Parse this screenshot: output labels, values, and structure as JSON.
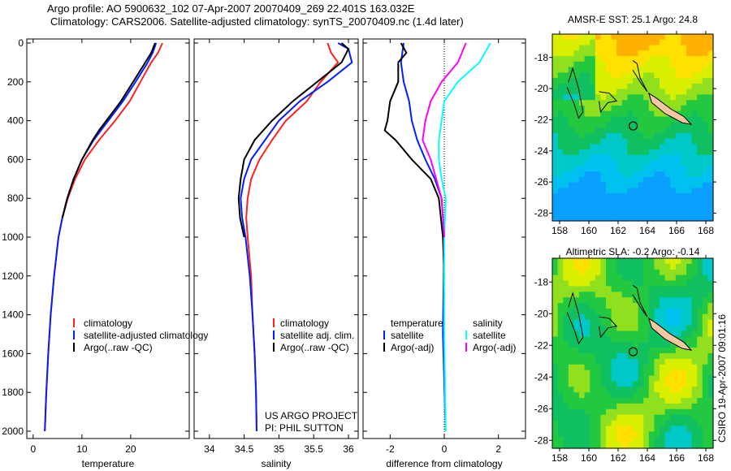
{
  "title_line1": "Argo profile: AO 5900632_102 07-Apr-2007 20070409_269 22.401S 163.032E",
  "title_line2": "Climatology: CARS2006. Satellite-adjusted climatology: synTS_20070409.nc (1.4d later)",
  "credit": "CSIRO 19-Apr-2007 09:01:16",
  "project_line1": "US ARGO PROJECT",
  "project_line2": "PI: PHIL SUTTON",
  "colors": {
    "clim": "#ff2020",
    "sat": "#0020ff",
    "argo": "#000000",
    "salsat": "#00ffff",
    "salargo": "#ff00ff"
  },
  "chart_data": [
    {
      "type": "line",
      "xlabel": "temperature",
      "ylabel": "",
      "xlim": [
        -1.3,
        32
      ],
      "ylim": [
        2000,
        0
      ],
      "xticks": [
        0,
        10,
        20
      ],
      "yticks": [
        0,
        200,
        400,
        600,
        800,
        1000,
        1200,
        1400,
        1600,
        1800,
        2000
      ],
      "legend": [
        "climatology",
        "satellite-adjusted climatology",
        "Argo(..raw -QC)"
      ],
      "series": [
        {
          "name": "climatology",
          "color": "#ff2020",
          "points": [
            [
              0,
              26.5
            ],
            [
              50,
              25.6
            ],
            [
              100,
              24.2
            ],
            [
              200,
              22
            ],
            [
              300,
              19.8
            ],
            [
              400,
              16.8
            ],
            [
              500,
              13.5
            ],
            [
              600,
              10.6
            ],
            [
              700,
              8.6
            ],
            [
              800,
              7.1
            ],
            [
              900,
              6
            ],
            [
              1000,
              5.2
            ],
            [
              1200,
              4.3
            ],
            [
              1400,
              3.6
            ],
            [
              1600,
              3.1
            ],
            [
              1800,
              2.7
            ],
            [
              2000,
              2.4
            ]
          ]
        },
        {
          "name": "satellite",
          "color": "#0020ff",
          "points": [
            [
              0,
              25.2
            ],
            [
              50,
              24.5
            ],
            [
              100,
              23.5
            ],
            [
              200,
              21
            ],
            [
              300,
              18.4
            ],
            [
              400,
              15.4
            ],
            [
              500,
              12.4
            ],
            [
              600,
              10
            ],
            [
              700,
              8.3
            ],
            [
              800,
              7
            ],
            [
              900,
              6
            ],
            [
              1000,
              5.2
            ],
            [
              1200,
              4.3
            ],
            [
              1400,
              3.6
            ],
            [
              1600,
              3.1
            ],
            [
              1800,
              2.7
            ],
            [
              2000,
              2.4
            ]
          ]
        },
        {
          "name": "Argo",
          "color": "#000000",
          "points": [
            [
              0,
              25
            ],
            [
              50,
              24.2
            ],
            [
              100,
              23
            ],
            [
              200,
              20.5
            ],
            [
              300,
              18
            ],
            [
              400,
              15
            ],
            [
              450,
              13.5
            ],
            [
              500,
              12.2
            ],
            [
              600,
              10
            ],
            [
              700,
              8.3
            ],
            [
              800,
              7
            ],
            [
              900,
              6
            ]
          ]
        }
      ]
    },
    {
      "type": "line",
      "xlabel": "salinity",
      "xlim": [
        33.78,
        36.14
      ],
      "ylim": [
        2000,
        0
      ],
      "xticks": [
        34,
        34.5,
        35,
        35.5,
        36
      ],
      "legend": [
        "climatology",
        "satellite adj. clim.",
        "Argo(..raw -QC)"
      ],
      "series": [
        {
          "name": "climatology",
          "color": "#ff2020",
          "points": [
            [
              0,
              35.7
            ],
            [
              50,
              35.75
            ],
            [
              100,
              35.85
            ],
            [
              200,
              35.6
            ],
            [
              300,
              35.4
            ],
            [
              400,
              35.1
            ],
            [
              500,
              34.9
            ],
            [
              600,
              34.72
            ],
            [
              700,
              34.6
            ],
            [
              800,
              34.55
            ],
            [
              900,
              34.53
            ],
            [
              1000,
              34.55
            ],
            [
              1200,
              34.6
            ],
            [
              1400,
              34.62
            ],
            [
              1600,
              34.65
            ],
            [
              1800,
              34.67
            ],
            [
              2000,
              34.68
            ]
          ]
        },
        {
          "name": "satellite",
          "color": "#0020ff",
          "points": [
            [
              0,
              35.85
            ],
            [
              30,
              36
            ],
            [
              100,
              36.05
            ],
            [
              200,
              35.7
            ],
            [
              300,
              35.3
            ],
            [
              400,
              35
            ],
            [
              500,
              34.8
            ],
            [
              600,
              34.6
            ],
            [
              700,
              34.5
            ],
            [
              800,
              34.45
            ],
            [
              900,
              34.47
            ],
            [
              1000,
              34.52
            ],
            [
              1200,
              34.58
            ],
            [
              1400,
              34.62
            ],
            [
              1600,
              34.65
            ],
            [
              1800,
              34.67
            ],
            [
              2000,
              34.68
            ]
          ]
        },
        {
          "name": "Argo",
          "color": "#000000",
          "points": [
            [
              0,
              35.9
            ],
            [
              30,
              36
            ],
            [
              100,
              35.9
            ],
            [
              200,
              35.55
            ],
            [
              300,
              35.2
            ],
            [
              400,
              34.9
            ],
            [
              500,
              34.65
            ],
            [
              600,
              34.5
            ],
            [
              700,
              34.45
            ],
            [
              800,
              34.42
            ],
            [
              900,
              34.44
            ],
            [
              1000,
              34.5
            ]
          ]
        }
      ]
    },
    {
      "type": "line",
      "xlabel": "difference from climatology",
      "xlim": [
        -3,
        3
      ],
      "ylim": [
        2000,
        0
      ],
      "xticks": [
        -2,
        0,
        2
      ],
      "legend_temp": {
        "header": "temperature",
        "items": [
          "satellite",
          "Argo(-adj)"
        ]
      },
      "legend_sal": {
        "header": "salinity",
        "items": [
          "satellite",
          "Argo(-adj)"
        ]
      },
      "series": [
        {
          "name": "temperature satellite",
          "color": "#0020ff",
          "points": [
            [
              0,
              -1.5
            ],
            [
              100,
              -1.6
            ],
            [
              200,
              -1.5
            ],
            [
              300,
              -1.3
            ],
            [
              400,
              -1.2
            ],
            [
              500,
              -1
            ],
            [
              600,
              -0.7
            ],
            [
              700,
              -0.35
            ],
            [
              800,
              -0.1
            ],
            [
              1000,
              0
            ],
            [
              1500,
              -0.05
            ],
            [
              2000,
              0.05
            ]
          ]
        },
        {
          "name": "temperature Argo",
          "color": "#000000",
          "points": [
            [
              0,
              -1.6
            ],
            [
              50,
              -1.4
            ],
            [
              100,
              -1.7
            ],
            [
              200,
              -1.7
            ],
            [
              300,
              -2
            ],
            [
              400,
              -2.1
            ],
            [
              450,
              -2.2
            ],
            [
              500,
              -1.8
            ],
            [
              550,
              -1.5
            ],
            [
              600,
              -1.2
            ],
            [
              700,
              -0.5
            ],
            [
              800,
              -0.2
            ],
            [
              1000,
              -0.05
            ],
            [
              1200,
              0
            ]
          ]
        },
        {
          "name": "salinity satellite",
          "color": "#00ffff",
          "points": [
            [
              0,
              1.7
            ],
            [
              100,
              1.3
            ],
            [
              200,
              0.5
            ],
            [
              300,
              0
            ],
            [
              400,
              -0.1
            ],
            [
              500,
              -0.2
            ],
            [
              600,
              -0.2
            ],
            [
              700,
              -0.1
            ],
            [
              800,
              0.05
            ],
            [
              1000,
              0
            ],
            [
              1500,
              0
            ],
            [
              2000,
              0.05
            ]
          ]
        },
        {
          "name": "salinity Argo",
          "color": "#ff00ff",
          "points": [
            [
              0,
              0.8
            ],
            [
              100,
              0.5
            ],
            [
              200,
              -0.1
            ],
            [
              300,
              -0.5
            ],
            [
              400,
              -0.7
            ],
            [
              500,
              -0.8
            ],
            [
              600,
              -0.5
            ],
            [
              700,
              -0.3
            ],
            [
              800,
              -0.1
            ],
            [
              1000,
              0
            ]
          ]
        }
      ]
    },
    {
      "type": "heatmap",
      "title": "AMSR-E SST: 25.1 Argo: 24.8",
      "xticks": [
        158,
        160,
        162,
        164,
        166,
        168
      ],
      "yticks": [
        -18,
        -20,
        -22,
        -24,
        -26,
        -28
      ],
      "xlim": [
        157.5,
        168.5
      ],
      "ylim": [
        -28.5,
        -16.5
      ],
      "argo_position": [
        163.03,
        -22.4
      ]
    },
    {
      "type": "heatmap",
      "title": "Altimetric SLA: -0.2 Argo: -0.14",
      "xticks": [
        158,
        160,
        162,
        164,
        166,
        168
      ],
      "yticks": [
        -18,
        -20,
        -22,
        -24,
        -26,
        -28
      ],
      "xlim": [
        157.5,
        168.5
      ],
      "ylim": [
        -28.5,
        -16.5
      ],
      "argo_position": [
        163.03,
        -22.4
      ]
    }
  ]
}
